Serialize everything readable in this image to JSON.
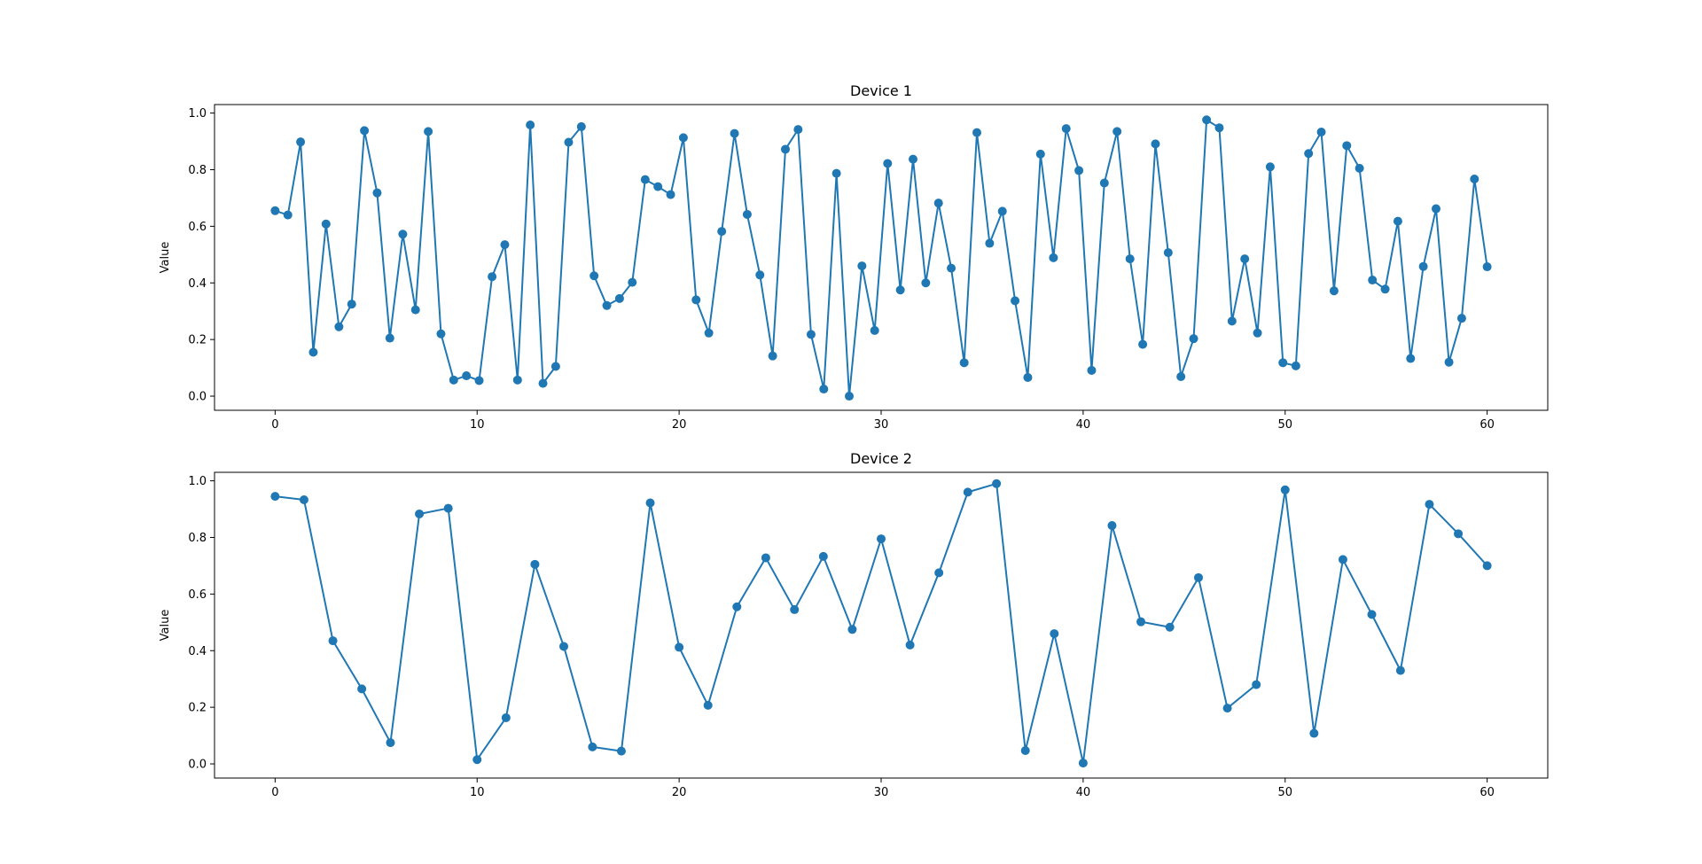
{
  "chart_data": [
    {
      "type": "line",
      "title": "Device 1",
      "xlabel": "",
      "ylabel": "Value",
      "xlim": [
        -3,
        63
      ],
      "ylim": [
        -0.05,
        1.03
      ],
      "xticks": [
        0,
        10,
        20,
        30,
        40,
        50,
        60
      ],
      "yticks": [
        0.0,
        0.2,
        0.4,
        0.6,
        0.8,
        1.0
      ],
      "marker": "circle",
      "color": "#1f77b4",
      "grid": false,
      "series": [
        {
          "x": [
            0.0,
            0.63,
            1.26,
            1.89,
            2.52,
            3.16,
            3.79,
            4.42,
            5.05,
            5.68,
            6.32,
            6.95,
            7.58,
            8.21,
            8.84,
            9.47,
            10.1,
            10.74,
            11.37,
            12.0,
            12.63,
            13.26,
            13.89,
            14.53,
            15.16,
            15.79,
            16.42,
            17.05,
            17.68,
            18.32,
            18.95,
            19.58,
            20.21,
            20.84,
            21.47,
            22.11,
            22.74,
            23.37,
            24.0,
            24.63,
            25.26,
            25.89,
            26.53,
            27.16,
            27.79,
            28.42,
            29.05,
            29.68,
            30.32,
            30.95,
            31.58,
            32.21,
            32.84,
            33.47,
            34.11,
            34.74,
            35.37,
            36.0,
            36.63,
            37.26,
            37.89,
            38.53,
            39.16,
            39.79,
            40.42,
            41.05,
            41.68,
            42.32,
            42.95,
            43.58,
            44.21,
            44.84,
            45.47,
            46.11,
            46.74,
            47.37,
            48.0,
            48.63,
            49.26,
            49.89,
            50.53,
            51.16,
            51.79,
            52.42,
            53.05,
            53.68,
            54.32,
            54.95,
            55.58,
            56.21,
            56.84,
            57.47,
            58.11,
            58.74,
            59.37,
            60.0
          ],
          "y": [
            0.655,
            0.64,
            0.898,
            0.155,
            0.608,
            0.245,
            0.325,
            0.938,
            0.718,
            0.205,
            0.572,
            0.305,
            0.935,
            0.22,
            0.057,
            0.072,
            0.055,
            0.422,
            0.535,
            0.057,
            0.958,
            0.045,
            0.105,
            0.897,
            0.952,
            0.425,
            0.32,
            0.345,
            0.402,
            0.765,
            0.74,
            0.712,
            0.913,
            0.34,
            0.223,
            0.582,
            0.928,
            0.642,
            0.428,
            0.142,
            0.872,
            0.942,
            0.218,
            0.025,
            0.787,
            0.0,
            0.46,
            0.232,
            0.822,
            0.375,
            0.837,
            0.4,
            0.682,
            0.452,
            0.118,
            0.931,
            0.54,
            0.653,
            0.337,
            0.066,
            0.855,
            0.489,
            0.945,
            0.797,
            0.091,
            0.753,
            0.935,
            0.485,
            0.183,
            0.891,
            0.507,
            0.069,
            0.203,
            0.976,
            0.948,
            0.265,
            0.485,
            0.223,
            0.81,
            0.118,
            0.107,
            0.857,
            0.933,
            0.372,
            0.885,
            0.805,
            0.41,
            0.378,
            0.618,
            0.133,
            0.458,
            0.662,
            0.12,
            0.275,
            0.767,
            0.457
          ]
        }
      ]
    },
    {
      "type": "line",
      "title": "Device 2",
      "xlabel": "",
      "ylabel": "Value",
      "xlim": [
        -3,
        63
      ],
      "ylim": [
        -0.05,
        1.03
      ],
      "xticks": [
        0,
        10,
        20,
        30,
        40,
        50,
        60
      ],
      "yticks": [
        0.0,
        0.2,
        0.4,
        0.6,
        0.8,
        1.0
      ],
      "marker": "circle",
      "color": "#1f77b4",
      "grid": false,
      "series": [
        {
          "x": [
            0.0,
            1.43,
            2.86,
            4.29,
            5.71,
            7.14,
            8.57,
            10.0,
            11.43,
            12.86,
            14.29,
            15.71,
            17.14,
            18.57,
            20.0,
            21.43,
            22.86,
            24.29,
            25.71,
            27.14,
            28.57,
            30.0,
            31.43,
            32.86,
            34.29,
            35.71,
            37.14,
            38.57,
            40.0,
            41.43,
            42.86,
            44.29,
            45.71,
            47.14,
            48.57,
            50.0,
            51.43,
            52.86,
            54.29,
            55.71,
            57.14,
            58.57,
            60.0
          ],
          "y": [
            0.945,
            0.933,
            0.435,
            0.265,
            0.075,
            0.883,
            0.903,
            0.015,
            0.163,
            0.705,
            0.415,
            0.06,
            0.045,
            0.922,
            0.412,
            0.207,
            0.555,
            0.728,
            0.545,
            0.733,
            0.475,
            0.795,
            0.42,
            0.675,
            0.96,
            0.99,
            0.047,
            0.46,
            0.003,
            0.842,
            0.502,
            0.483,
            0.658,
            0.197,
            0.28,
            0.968,
            0.108,
            0.722,
            0.528,
            0.33,
            0.917,
            0.813,
            0.7
          ]
        }
      ]
    }
  ]
}
